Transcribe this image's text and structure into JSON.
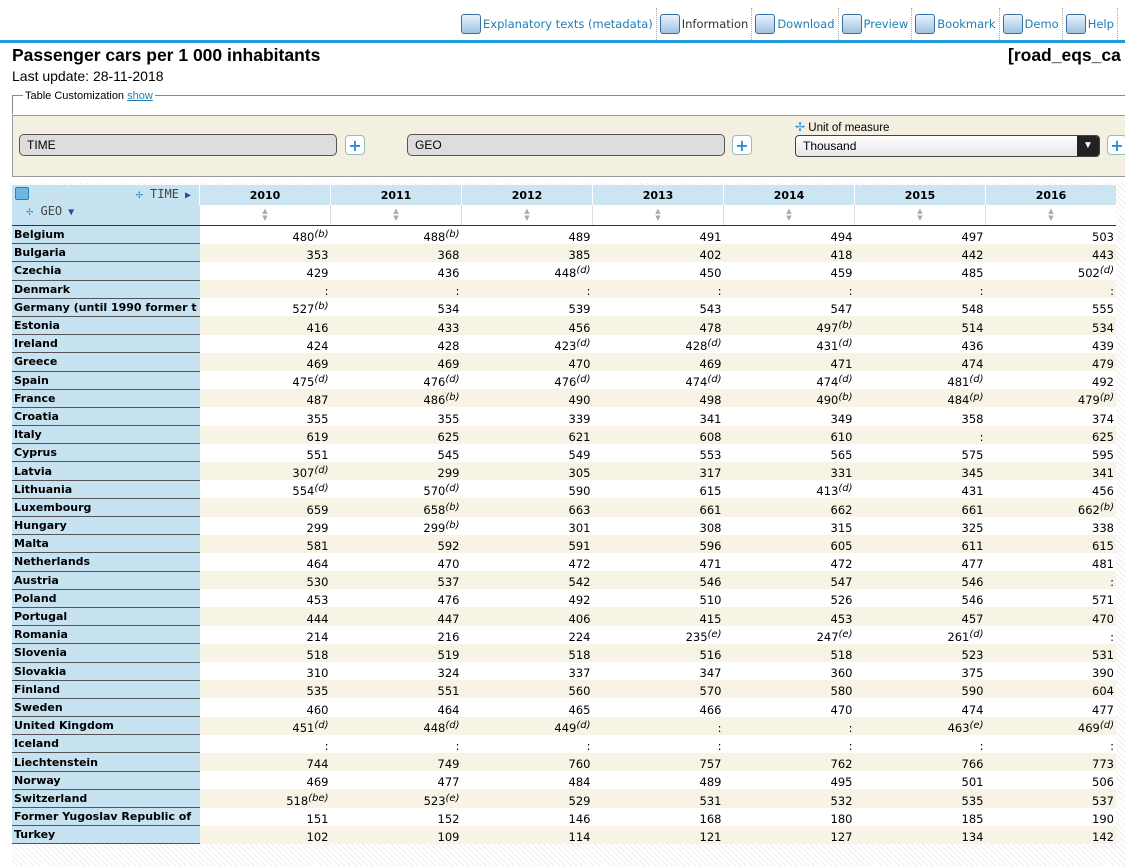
{
  "toolbar": [
    "Explanatory texts (metadata)",
    "Information",
    "Download",
    "Preview",
    "Bookmark",
    "Demo",
    "Help"
  ],
  "header": {
    "title": "Passenger cars per 1 000 inhabitants",
    "code": "[road_eqs_ca",
    "update": "Last update: 28-11-2018"
  },
  "customization": {
    "label": "Table Customization",
    "link": "show"
  },
  "dimensions": {
    "time": "TIME",
    "geo": "GEO",
    "unit_label": "Unit of measure",
    "unit_value": "Thousand"
  },
  "table": {
    "time": "TIME",
    "geo": "GEO",
    "years": [
      "2010",
      "2011",
      "2012",
      "2013",
      "2014",
      "2015",
      "2016"
    ],
    "rows": [
      {
        "geo": "Belgium",
        "values": [
          480,
          488,
          489,
          491,
          494,
          497,
          503
        ],
        "flags": {
          "0": "(b)",
          "1": "(b)"
        }
      },
      {
        "geo": "Bulgaria",
        "values": [
          353,
          368,
          385,
          402,
          418,
          442,
          443
        ],
        "flags": {}
      },
      {
        "geo": "Czechia",
        "values": [
          429,
          436,
          448,
          450,
          459,
          485,
          502
        ],
        "flags": {
          "2": "(d)",
          "6": "(d)"
        }
      },
      {
        "geo": "Denmark",
        "values": [
          ":",
          ":",
          ":",
          ":",
          ":",
          ":",
          ":"
        ],
        "flags": {}
      },
      {
        "geo": "Germany (until 1990 former t",
        "values": [
          527,
          534,
          539,
          543,
          547,
          548,
          555
        ],
        "flags": {
          "0": "(b)"
        }
      },
      {
        "geo": "Estonia",
        "values": [
          416,
          433,
          456,
          478,
          497,
          514,
          534
        ],
        "flags": {
          "4": "(b)"
        }
      },
      {
        "geo": "Ireland",
        "values": [
          424,
          428,
          423,
          428,
          431,
          436,
          439
        ],
        "flags": {
          "2": "(d)",
          "3": "(d)",
          "4": "(d)"
        }
      },
      {
        "geo": "Greece",
        "values": [
          469,
          469,
          470,
          469,
          471,
          474,
          479
        ],
        "flags": {}
      },
      {
        "geo": "Spain",
        "values": [
          475,
          476,
          476,
          474,
          474,
          481,
          492
        ],
        "flags": {
          "0": "(d)",
          "1": "(d)",
          "2": "(d)",
          "3": "(d)",
          "4": "(d)",
          "5": "(d)"
        }
      },
      {
        "geo": "France",
        "values": [
          487,
          486,
          490,
          498,
          490,
          484,
          479
        ],
        "flags": {
          "1": "(b)",
          "4": "(b)",
          "5": "(p)",
          "6": "(p)"
        }
      },
      {
        "geo": "Croatia",
        "values": [
          355,
          355,
          339,
          341,
          349,
          358,
          374
        ],
        "flags": {}
      },
      {
        "geo": "Italy",
        "values": [
          619,
          625,
          621,
          608,
          610,
          ":",
          625
        ],
        "flags": {}
      },
      {
        "geo": "Cyprus",
        "values": [
          551,
          545,
          549,
          553,
          565,
          575,
          595
        ],
        "flags": {}
      },
      {
        "geo": "Latvia",
        "values": [
          307,
          299,
          305,
          317,
          331,
          345,
          341
        ],
        "flags": {
          "0": "(d)"
        }
      },
      {
        "geo": "Lithuania",
        "values": [
          554,
          570,
          590,
          615,
          413,
          431,
          456
        ],
        "flags": {
          "0": "(d)",
          "1": "(d)",
          "4": "(d)"
        }
      },
      {
        "geo": "Luxembourg",
        "values": [
          659,
          658,
          663,
          661,
          662,
          661,
          662
        ],
        "flags": {
          "1": "(b)",
          "6": "(b)"
        }
      },
      {
        "geo": "Hungary",
        "values": [
          299,
          299,
          301,
          308,
          315,
          325,
          338
        ],
        "flags": {
          "1": "(b)"
        }
      },
      {
        "geo": "Malta",
        "values": [
          581,
          592,
          591,
          596,
          605,
          611,
          615
        ],
        "flags": {}
      },
      {
        "geo": "Netherlands",
        "values": [
          464,
          470,
          472,
          471,
          472,
          477,
          481
        ],
        "flags": {}
      },
      {
        "geo": "Austria",
        "values": [
          530,
          537,
          542,
          546,
          547,
          546,
          ":"
        ],
        "flags": {}
      },
      {
        "geo": "Poland",
        "values": [
          453,
          476,
          492,
          510,
          526,
          546,
          571
        ],
        "flags": {}
      },
      {
        "geo": "Portugal",
        "values": [
          444,
          447,
          406,
          415,
          453,
          457,
          470
        ],
        "flags": {}
      },
      {
        "geo": "Romania",
        "values": [
          214,
          216,
          224,
          235,
          247,
          261,
          ":"
        ],
        "flags": {
          "3": "(e)",
          "4": "(e)",
          "5": "(d)"
        }
      },
      {
        "geo": "Slovenia",
        "values": [
          518,
          519,
          518,
          516,
          518,
          523,
          531
        ],
        "flags": {}
      },
      {
        "geo": "Slovakia",
        "values": [
          310,
          324,
          337,
          347,
          360,
          375,
          390
        ],
        "flags": {}
      },
      {
        "geo": "Finland",
        "values": [
          535,
          551,
          560,
          570,
          580,
          590,
          604
        ],
        "flags": {}
      },
      {
        "geo": "Sweden",
        "values": [
          460,
          464,
          465,
          466,
          470,
          474,
          477
        ],
        "flags": {}
      },
      {
        "geo": "United Kingdom",
        "values": [
          451,
          448,
          449,
          ":",
          ":",
          463,
          469
        ],
        "flags": {
          "0": "(d)",
          "1": "(d)",
          "2": "(d)",
          "5": "(e)",
          "6": "(d)"
        }
      },
      {
        "geo": "Iceland",
        "values": [
          ":",
          ":",
          ":",
          ":",
          ":",
          ":",
          ":"
        ],
        "flags": {}
      },
      {
        "geo": "Liechtenstein",
        "values": [
          744,
          749,
          760,
          757,
          762,
          766,
          773
        ],
        "flags": {}
      },
      {
        "geo": "Norway",
        "values": [
          469,
          477,
          484,
          489,
          495,
          501,
          506
        ],
        "flags": {}
      },
      {
        "geo": "Switzerland",
        "values": [
          518,
          523,
          529,
          531,
          532,
          535,
          537
        ],
        "flags": {
          "0": "(be)",
          "1": "(e)"
        }
      },
      {
        "geo": "Former Yugoslav Republic of",
        "values": [
          151,
          152,
          146,
          168,
          180,
          185,
          190
        ],
        "flags": {}
      },
      {
        "geo": "Turkey",
        "values": [
          102,
          109,
          114,
          121,
          127,
          134,
          142
        ],
        "flags": {}
      }
    ]
  }
}
